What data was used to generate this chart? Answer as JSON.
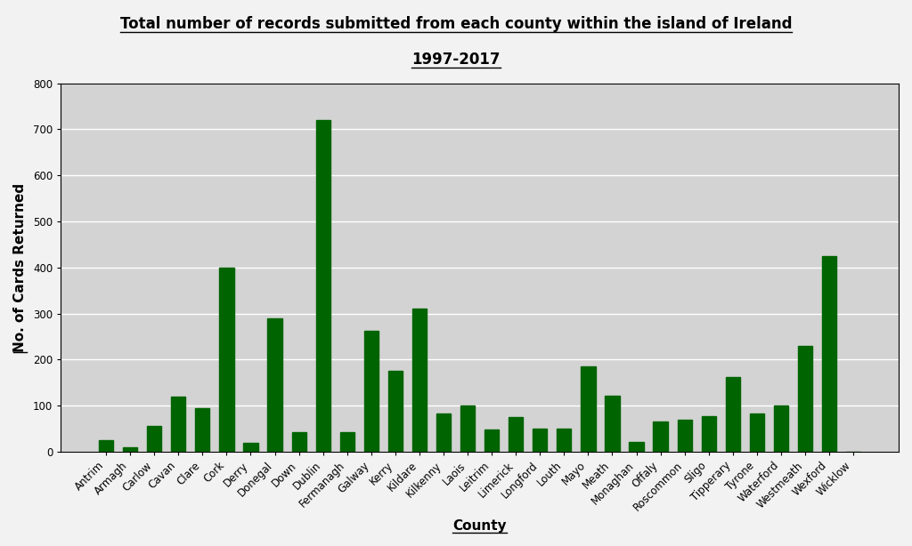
{
  "title_line1": "Total number of records submitted from each county within the island of Ireland",
  "title_line2": "1997-2017",
  "xlabel": "County",
  "ylabel": "No. of Cards Returned",
  "categories": [
    "Antrim",
    "Armagh",
    "Carlow",
    "Cavan",
    "Clare",
    "Cork",
    "Derry",
    "Donegal",
    "Down",
    "Dublin",
    "Fermanagh",
    "Galway",
    "Kerry",
    "Kildare",
    "Kilkenny",
    "Laois",
    "Leitrim",
    "Limerick",
    "Longford",
    "Louth",
    "Mayo",
    "Meath",
    "Monaghan",
    "Offaly",
    "Roscommon",
    "Sligo",
    "Tipperary",
    "Tyrone",
    "Waterford",
    "Westmeath",
    "Wexford",
    "Wicklow"
  ],
  "values": [
    25,
    10,
    55,
    120,
    95,
    400,
    20,
    290,
    42,
    720,
    42,
    262,
    175,
    310,
    83,
    100,
    48,
    75,
    50,
    50,
    185,
    122,
    22,
    65,
    70,
    78,
    162,
    83,
    100,
    230,
    425,
    0
  ],
  "bar_color": "#006400",
  "plot_bg_color": "#d3d3d3",
  "figure_bg_color": "#f2f2f2",
  "ylim": [
    0,
    800
  ],
  "yticks": [
    0,
    100,
    200,
    300,
    400,
    500,
    600,
    700,
    800
  ],
  "grid_color": "#ffffff",
  "title_fontsize": 12,
  "axis_label_fontsize": 11,
  "tick_fontsize": 8.5
}
